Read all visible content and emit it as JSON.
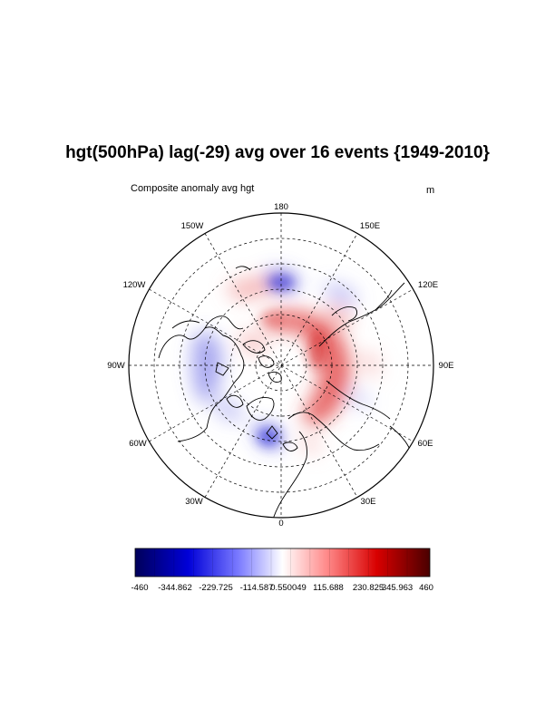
{
  "title": "hgt(500hPa) lag(-29) avg over 16 events {1949-2010}",
  "subtitle_left": "Composite anomaly avg hgt",
  "units": "m",
  "map": {
    "projection": "polar stereographic",
    "hemisphere": "north",
    "longitude_labels": {
      "top": "180",
      "bottom": "0",
      "left": "90W",
      "right": "90E",
      "upper_left_outer": "150W",
      "upper_left_inner": "120W",
      "lower_left_inner": "60W",
      "lower_left_outer": "30W",
      "upper_right_outer": "150E",
      "upper_right_inner": "120E",
      "lower_right_inner": "60E",
      "lower_right_outer": "30E"
    }
  },
  "colorbar": {
    "min": -460,
    "max": 460,
    "labels": [
      "-460",
      "-344.862",
      "-229.725",
      "-114.587",
      "0.550049",
      "115.688",
      "230.825",
      "345.963",
      "460"
    ],
    "colors": {
      "low": "#00005a",
      "mid": "#ffffff",
      "high": "#4a0000"
    }
  }
}
